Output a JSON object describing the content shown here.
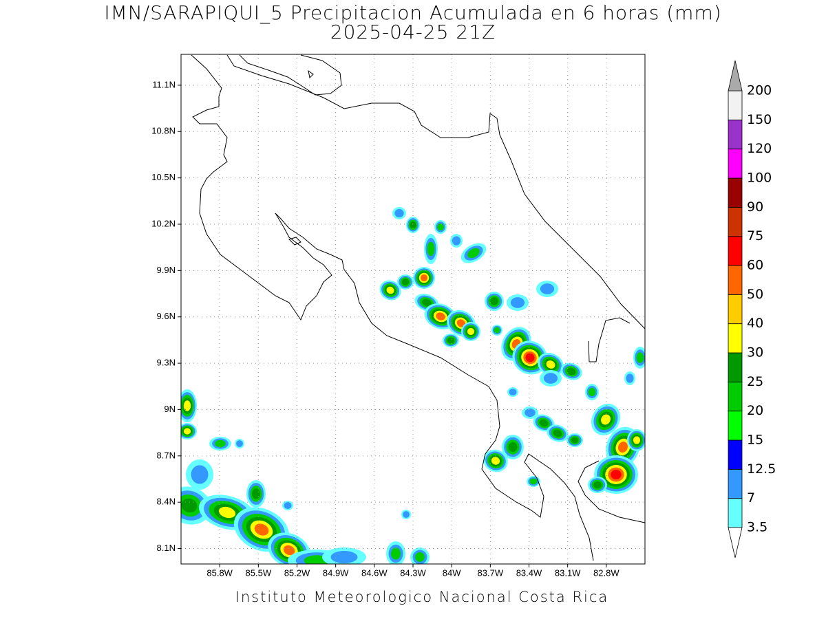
{
  "map": {
    "title": "IMN/SARAPIQUI_5 Precipitacion Acumulada en 6 horas (mm)",
    "subtitle": "2025-04-25 21Z",
    "footer": "Instituto Meteorologico Nacional Costa Rica",
    "xlim": [
      -86.1,
      -82.5
    ],
    "ylim": [
      8.0,
      11.3
    ],
    "grid": true,
    "xticks": [
      {
        "value": -85.8,
        "label": "85.8W"
      },
      {
        "value": -85.5,
        "label": "85.5W"
      },
      {
        "value": -85.2,
        "label": "85.2W"
      },
      {
        "value": -84.9,
        "label": "84.9W"
      },
      {
        "value": -84.6,
        "label": "84.6W"
      },
      {
        "value": -84.3,
        "label": "84.3W"
      },
      {
        "value": -84.0,
        "label": "84W"
      },
      {
        "value": -83.7,
        "label": "83.7W"
      },
      {
        "value": -83.4,
        "label": "83.4W"
      },
      {
        "value": -83.1,
        "label": "83.1W"
      },
      {
        "value": -82.8,
        "label": "82.8W"
      }
    ],
    "yticks": [
      {
        "value": 8.1,
        "label": "8.1N"
      },
      {
        "value": 8.4,
        "label": "8.4N"
      },
      {
        "value": 8.7,
        "label": "8.7N"
      },
      {
        "value": 9.0,
        "label": "9N"
      },
      {
        "value": 9.3,
        "label": "9.3N"
      },
      {
        "value": 9.6,
        "label": "9.6N"
      },
      {
        "value": 9.9,
        "label": "9.9N"
      },
      {
        "value": 10.2,
        "label": "10.2N"
      },
      {
        "value": 10.5,
        "label": "10.5N"
      },
      {
        "value": 10.8,
        "label": "10.8N"
      },
      {
        "value": 11.1,
        "label": "11.1N"
      }
    ],
    "legend": {
      "levels": [
        3.5,
        7,
        12.5,
        15,
        20,
        25,
        30,
        40,
        50,
        60,
        75,
        90,
        100,
        120,
        150,
        200
      ],
      "colors": [
        "#66ffff",
        "#3399ff",
        "#0000ff",
        "#00ff00",
        "#00cc00",
        "#009900",
        "#ffff00",
        "#ffcc00",
        "#ff6600",
        "#ff0000",
        "#cc3300",
        "#990000",
        "#ff00ff",
        "#9933cc",
        "#f2f2f2"
      ],
      "under_color": "#ffffff",
      "over_color": "#aaaaaa"
    }
  }
}
